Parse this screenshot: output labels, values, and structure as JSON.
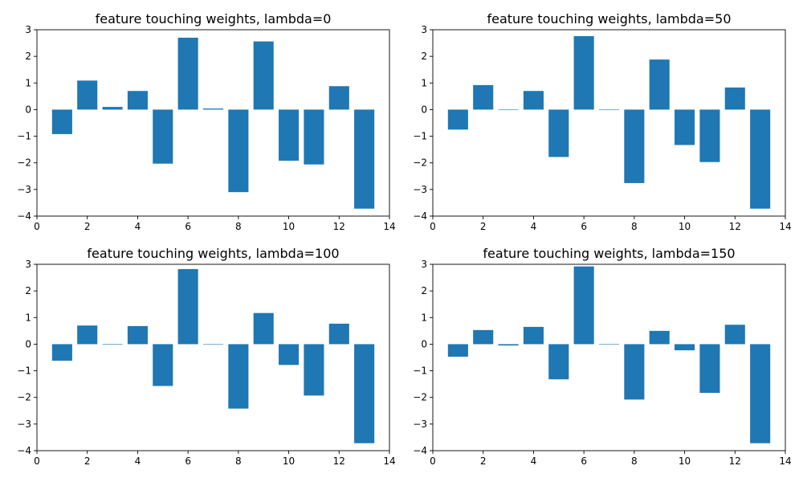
{
  "figure": {
    "bar_color": "#1f77b4",
    "axes_color": "#000000",
    "background": "#ffffff"
  },
  "chart_data": [
    {
      "type": "bar",
      "title": "feature touching weights, lambda=0",
      "x": [
        1,
        2,
        3,
        4,
        5,
        6,
        7,
        8,
        9,
        10,
        11,
        12,
        13
      ],
      "values": [
        -0.92,
        1.09,
        0.1,
        0.7,
        -2.03,
        2.7,
        0.04,
        -3.1,
        2.56,
        -1.92,
        -2.06,
        0.88,
        -3.72
      ],
      "xlim": [
        0,
        14
      ],
      "ylim": [
        -4,
        3
      ],
      "xticks": [
        0,
        2,
        4,
        6,
        8,
        10,
        12,
        14
      ],
      "yticks": [
        -4,
        -3,
        -2,
        -1,
        0,
        1,
        2,
        3
      ],
      "grid": false
    },
    {
      "type": "bar",
      "title": "feature touching weights, lambda=50",
      "x": [
        1,
        2,
        3,
        4,
        5,
        6,
        7,
        8,
        9,
        10,
        11,
        12,
        13
      ],
      "values": [
        -0.75,
        0.92,
        0.0,
        0.7,
        -1.78,
        2.76,
        0.0,
        -2.76,
        1.88,
        -1.33,
        -1.97,
        0.83,
        -3.72
      ],
      "xlim": [
        0,
        14
      ],
      "ylim": [
        -4,
        3
      ],
      "xticks": [
        0,
        2,
        4,
        6,
        8,
        10,
        12,
        14
      ],
      "yticks": [
        -4,
        -3,
        -2,
        -1,
        0,
        1,
        2,
        3
      ],
      "grid": false
    },
    {
      "type": "bar",
      "title": "feature touching weights, lambda=100",
      "x": [
        1,
        2,
        3,
        4,
        5,
        6,
        7,
        8,
        9,
        10,
        11,
        12,
        13
      ],
      "values": [
        -0.62,
        0.7,
        -0.02,
        0.68,
        -1.57,
        2.82,
        0.0,
        -2.42,
        1.17,
        -0.78,
        -1.93,
        0.77,
        -3.72
      ],
      "xlim": [
        0,
        14
      ],
      "ylim": [
        -4,
        3
      ],
      "xticks": [
        0,
        2,
        4,
        6,
        8,
        10,
        12,
        14
      ],
      "yticks": [
        -4,
        -3,
        -2,
        -1,
        0,
        1,
        2,
        3
      ],
      "grid": false
    },
    {
      "type": "bar",
      "title": "feature touching weights, lambda=150",
      "x": [
        1,
        2,
        3,
        4,
        5,
        6,
        7,
        8,
        9,
        10,
        11,
        12,
        13
      ],
      "values": [
        -0.47,
        0.53,
        -0.05,
        0.65,
        -1.32,
        2.92,
        0.0,
        -2.08,
        0.5,
        -0.23,
        -1.83,
        0.73,
        -3.72
      ],
      "xlim": [
        0,
        14
      ],
      "ylim": [
        -4,
        3
      ],
      "xticks": [
        0,
        2,
        4,
        6,
        8,
        10,
        12,
        14
      ],
      "yticks": [
        -4,
        -3,
        -2,
        -1,
        0,
        1,
        2,
        3
      ],
      "grid": false
    }
  ]
}
